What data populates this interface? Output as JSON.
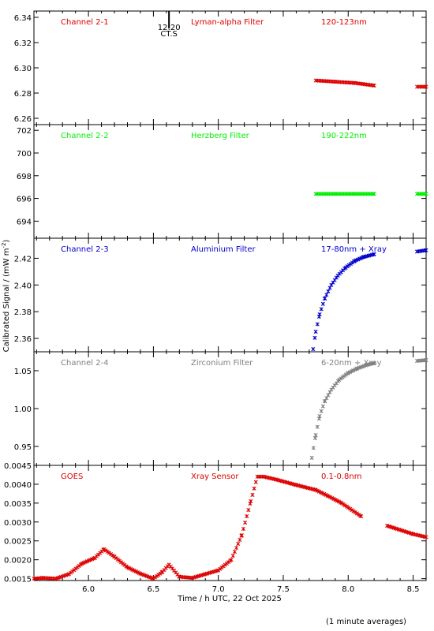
{
  "figure": {
    "ylabel": "Calibrated Signal / (mW m",
    "ylabel_sup": "-2",
    "ylabel_end": ")",
    "xlabel": "Time / h UTC, 22 Oct 2025",
    "footnote": "(1 minute averages)",
    "marker": {
      "time_label": "12:20",
      "sub_label": "CT.S",
      "x": 6.62
    },
    "x_range": [
      5.58,
      8.6
    ],
    "x_ticks": [
      6.0,
      6.5,
      7.0,
      7.5,
      8.0,
      8.5
    ],
    "x_tick_labels": [
      "6.0",
      "6.5",
      "7.0",
      "7.5",
      "8.0",
      "8.5"
    ]
  },
  "panels": [
    {
      "channel": "Channel 2-1",
      "filter": "Lyman-alpha Filter",
      "band": "120-123nm",
      "color": "#dd0000",
      "ylim": [
        6.255,
        6.345
      ],
      "y_ticks": [
        6.26,
        6.28,
        6.3,
        6.32,
        6.34
      ],
      "y_tick_labels": [
        "6.26",
        "6.28",
        "6.30",
        "6.32",
        "6.34"
      ]
    },
    {
      "channel": "Channel 2-2",
      "filter": "Herzberg Filter",
      "band": "190-222nm",
      "color": "#00ee00",
      "ylim": [
        692.5,
        702.5
      ],
      "y_ticks": [
        694,
        696,
        698,
        700,
        702
      ],
      "y_tick_labels": [
        "694",
        "696",
        "698",
        "700",
        "702"
      ]
    },
    {
      "channel": "Channel 2-3",
      "filter": "Aluminium Filter",
      "band": "17-80nm + Xray",
      "color": "#0000cc",
      "ylim": [
        2.35,
        2.435
      ],
      "y_ticks": [
        2.36,
        2.38,
        2.4,
        2.42
      ],
      "y_tick_labels": [
        "2.36",
        "2.38",
        "2.40",
        "2.42"
      ]
    },
    {
      "channel": "Channel 2-4",
      "filter": "Zirconium Filter",
      "band": "6-20nm + Xray",
      "color": "#808080",
      "ylim": [
        0.925,
        1.075
      ],
      "y_ticks": [
        0.95,
        1.0,
        1.05
      ],
      "y_tick_labels": [
        "0.95",
        "1.00",
        "1.05"
      ]
    },
    {
      "channel": "GOES",
      "filter": "Xray Sensor",
      "band": "0.1-0.8nm",
      "color": "#dd0000",
      "ylim": [
        0.00145,
        0.0045
      ],
      "y_ticks": [
        0.0015,
        0.002,
        0.0025,
        0.003,
        0.0035,
        0.004,
        0.0045
      ],
      "y_tick_labels": [
        "0.0015",
        "0.0020",
        "0.0025",
        "0.0030",
        "0.0035",
        "0.0040",
        "0.0045"
      ]
    }
  ],
  "chart_data": [
    {
      "type": "scatter",
      "channel": "Channel 2-1",
      "series": [
        {
          "x": [
            7.75,
            7.9,
            8.05,
            8.2,
            8.53,
            8.6
          ],
          "y": [
            6.29,
            6.289,
            6.288,
            6.286,
            6.285,
            6.285
          ]
        }
      ]
    },
    {
      "type": "scatter",
      "channel": "Channel 2-2",
      "series": [
        {
          "x": [
            7.75,
            7.9,
            8.05,
            8.2,
            8.53,
            8.6
          ],
          "y": [
            696.4,
            696.4,
            696.4,
            696.4,
            696.4,
            696.4
          ]
        }
      ]
    },
    {
      "type": "scatter",
      "channel": "Channel 2-3",
      "series": [
        {
          "x": [
            7.73,
            7.75,
            7.78,
            7.82,
            7.87,
            7.92,
            7.98,
            8.05,
            8.12,
            8.2,
            8.53,
            8.6
          ],
          "y": [
            2.352,
            2.365,
            2.378,
            2.39,
            2.4,
            2.407,
            2.413,
            2.418,
            2.421,
            2.423,
            2.425,
            2.426
          ]
        }
      ]
    },
    {
      "type": "scatter",
      "channel": "Channel 2-4",
      "series": [
        {
          "x": [
            7.72,
            7.75,
            7.78,
            7.82,
            7.87,
            7.93,
            8.0,
            8.07,
            8.15,
            8.2,
            8.53,
            8.6
          ],
          "y": [
            0.935,
            0.965,
            0.99,
            1.01,
            1.025,
            1.038,
            1.047,
            1.053,
            1.058,
            1.06,
            1.063,
            1.064
          ]
        }
      ]
    },
    {
      "type": "scatter",
      "channel": "GOES",
      "series": [
        {
          "x": [
            5.58,
            5.65,
            5.75,
            5.85,
            5.95,
            6.05,
            6.12,
            6.2,
            6.3,
            6.4,
            6.5,
            6.57,
            6.62,
            6.7,
            6.8,
            6.9,
            7.0,
            7.1,
            7.18,
            7.25,
            7.3,
            7.35,
            7.45,
            7.6,
            7.75,
            7.85,
            7.95,
            8.1,
            8.3,
            8.5,
            8.6
          ],
          "y": [
            0.0015,
            0.00152,
            0.0015,
            0.00162,
            0.0019,
            0.00205,
            0.00228,
            0.00208,
            0.0018,
            0.00163,
            0.0015,
            0.00168,
            0.00187,
            0.00155,
            0.00152,
            0.00162,
            0.00172,
            0.002,
            0.00265,
            0.00355,
            0.0042,
            0.0042,
            0.00412,
            0.00398,
            0.00385,
            0.00368,
            0.0035,
            0.00315,
            0.0029,
            0.00268,
            0.0026
          ]
        }
      ]
    }
  ]
}
